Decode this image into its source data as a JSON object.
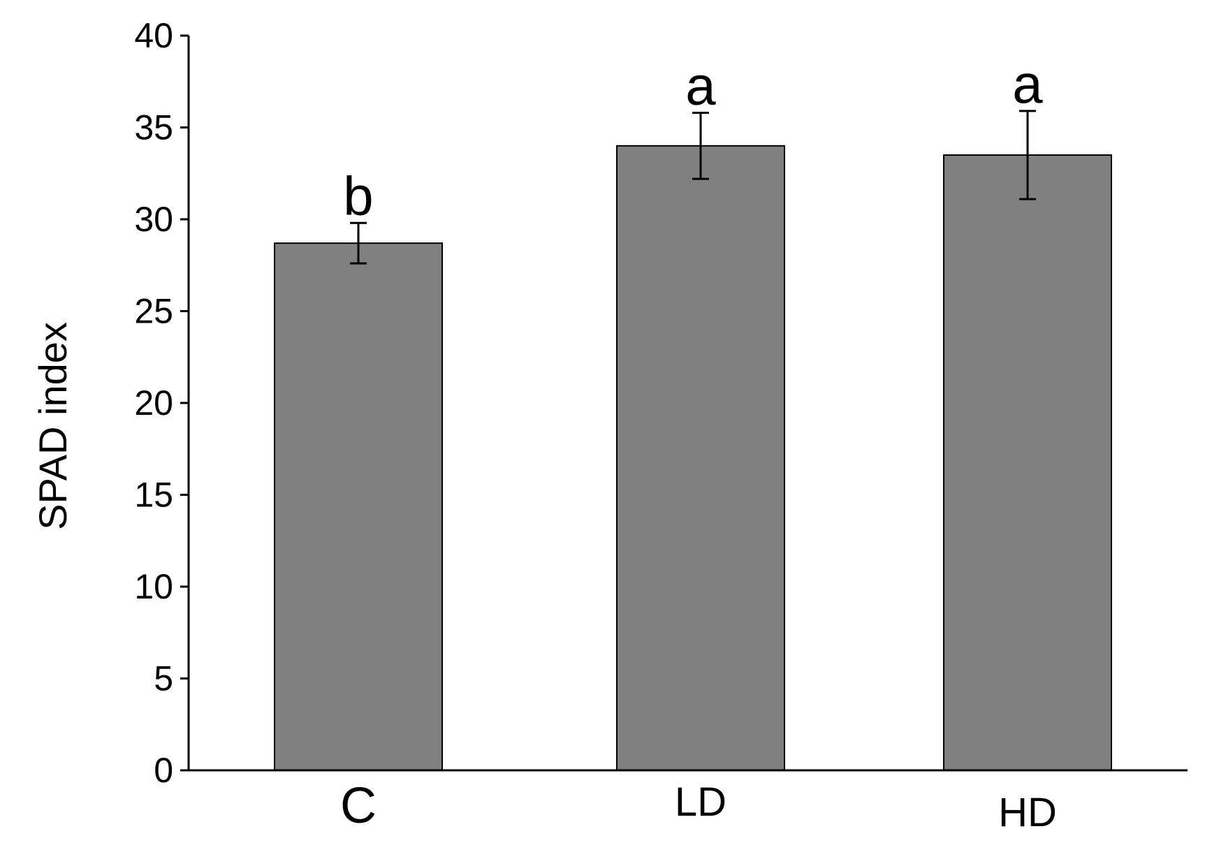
{
  "chart_data": {
    "type": "bar",
    "categories": [
      "C",
      "LD",
      "HD"
    ],
    "values": [
      28.7,
      34.0,
      33.5
    ],
    "errors": [
      1.1,
      1.8,
      2.4
    ],
    "significance_labels": [
      "b",
      "a",
      "a"
    ],
    "title": "",
    "xlabel": "",
    "ylabel": "SPAD index",
    "ylim": [
      0,
      40
    ],
    "yticks": [
      0,
      5,
      10,
      15,
      20,
      25,
      30,
      35,
      40
    ],
    "bar_color": "#808080",
    "grid": false,
    "legend": "none"
  }
}
